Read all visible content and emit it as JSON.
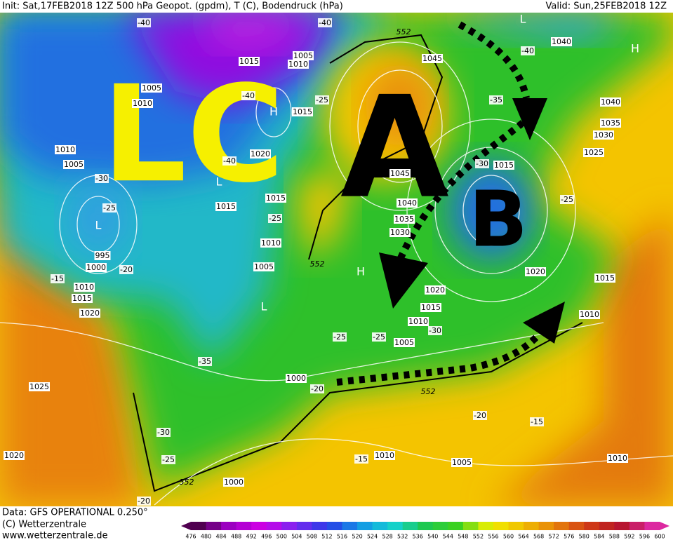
{
  "header": {
    "init": "Init: Sat,17FEB2018 12Z  500 hPa Geopot. (gpdm), T (C), Bodendruck (hPa)",
    "valid": "Valid: Sun,25FEB2018 12Z"
  },
  "annotations": [
    "LC",
    "A",
    "B"
  ],
  "pressure_labels": [
    "1015",
    "1005",
    "1010",
    "1005",
    "1010",
    "1015",
    "1020",
    "1010",
    "1005",
    "1015",
    "1015",
    "1010",
    "1005",
    "995",
    "1000",
    "1010",
    "1015",
    "1020",
    "1045",
    "1045",
    "1040",
    "1035",
    "1030",
    "1015",
    "1020",
    "1015",
    "1010",
    "1005",
    "1020",
    "1015",
    "1010",
    "1040",
    "1040",
    "1035",
    "1030",
    "1025",
    "1025",
    "1000",
    "1020",
    "1010",
    "1005",
    "1000",
    "1010"
  ],
  "temperature_labels": [
    "-40",
    "-40",
    "-40",
    "-40",
    "-40",
    "-30",
    "-25",
    "-25",
    "-35",
    "-30",
    "-25",
    "-25",
    "-20",
    "-15",
    "-25",
    "-25",
    "-30",
    "-35",
    "-20",
    "-30",
    "-25",
    "-20",
    "-15",
    "-15",
    "-20"
  ],
  "height_labels": [
    "552",
    "552",
    "552",
    "552"
  ],
  "pressure_centers": [
    "L",
    "H",
    "H",
    "L",
    "L",
    "H",
    "L"
  ],
  "footer": [
    "Data: GFS OPERATIONAL 0.250°",
    "(C) Wetterzentrale",
    "www.wetterzentrale.de"
  ],
  "colorbar": {
    "ticks": [
      476,
      480,
      484,
      488,
      492,
      496,
      500,
      504,
      508,
      512,
      516,
      520,
      524,
      528,
      532,
      536,
      540,
      544,
      548,
      552,
      556,
      560,
      564,
      568,
      572,
      576,
      580,
      584,
      588,
      592,
      596,
      600
    ]
  }
}
